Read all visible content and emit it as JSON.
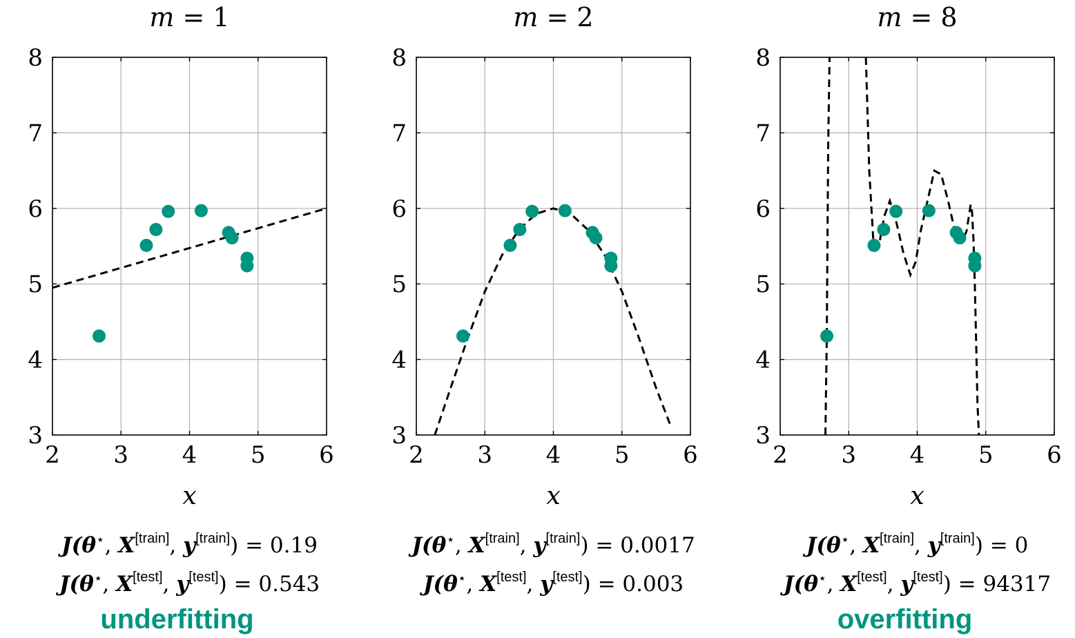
{
  "colors": {
    "points": "#009580",
    "fit_line": "#000000",
    "grid": "#b0b0b0",
    "axes": "#000000",
    "labels": "#009580"
  },
  "panels": [
    {
      "title_var": "m",
      "title_eq": " = 1",
      "xlabel": "x",
      "train_lhs": "J(θ",
      "train_value": ") = 0.19",
      "test_value": ") = 0.543",
      "label": "underfitting"
    },
    {
      "title_var": "m",
      "title_eq": " = 2",
      "xlabel": "x",
      "train_lhs": "J(θ",
      "train_value": ") = 0.0017",
      "test_value": ") = 0.003",
      "label": ""
    },
    {
      "title_var": "m",
      "title_eq": " = 8",
      "xlabel": "x",
      "train_lhs": "J(θ",
      "train_value": ") = 0",
      "test_value": ") = 94317",
      "label": "overfitting"
    }
  ],
  "loss_text": {
    "star": "⋆",
    "X": "X",
    "y": "y",
    "train_sup": "[train]",
    "test_sup": "[test]"
  },
  "chart_data": [
    {
      "type": "scatter",
      "title": "m = 1",
      "xlabel": "x",
      "ylabel": "",
      "xlim": [
        2,
        6
      ],
      "ylim": [
        3,
        8
      ],
      "xticks": [
        2,
        3,
        4,
        5,
        6
      ],
      "yticks": [
        3,
        4,
        5,
        6,
        7,
        8
      ],
      "grid": true,
      "points": {
        "x": [
          2.68,
          3.37,
          3.51,
          3.69,
          4.17,
          4.57,
          4.62,
          4.84,
          4.84
        ],
        "y": [
          4.31,
          5.51,
          5.72,
          5.96,
          5.97,
          5.68,
          5.61,
          5.34,
          5.24
        ]
      },
      "fit": {
        "style": "dashed",
        "x": [
          2.0,
          6.0
        ],
        "y": [
          4.95,
          6.0
        ]
      }
    },
    {
      "type": "scatter",
      "title": "m = 2",
      "xlabel": "x",
      "ylabel": "",
      "xlim": [
        2,
        6
      ],
      "ylim": [
        3,
        8
      ],
      "xticks": [
        2,
        3,
        4,
        5,
        6
      ],
      "yticks": [
        3,
        4,
        5,
        6,
        7,
        8
      ],
      "grid": true,
      "points": {
        "x": [
          2.68,
          3.37,
          3.51,
          3.69,
          4.17,
          4.57,
          4.62,
          4.84,
          4.84
        ],
        "y": [
          4.31,
          5.51,
          5.72,
          5.96,
          5.97,
          5.68,
          5.61,
          5.34,
          5.24
        ]
      },
      "fit": {
        "style": "dashed",
        "x": [
          2.27,
          2.5,
          2.75,
          3.0,
          3.25,
          3.5,
          3.75,
          4.0,
          4.25,
          4.5,
          4.75,
          5.0,
          5.25,
          5.5,
          5.72
        ],
        "y": [
          3.0,
          3.62,
          4.28,
          4.9,
          5.38,
          5.72,
          5.93,
          6.0,
          5.93,
          5.72,
          5.38,
          4.9,
          4.28,
          3.62,
          3.1
        ]
      }
    },
    {
      "type": "scatter",
      "title": "m = 8",
      "xlabel": "x",
      "ylabel": "",
      "xlim": [
        2,
        6
      ],
      "ylim": [
        3,
        8
      ],
      "xticks": [
        2,
        3,
        4,
        5,
        6
      ],
      "yticks": [
        3,
        4,
        5,
        6,
        7,
        8
      ],
      "grid": true,
      "points": {
        "x": [
          2.68,
          3.37,
          3.51,
          3.69,
          4.17,
          4.57,
          4.62,
          4.84,
          4.84
        ],
        "y": [
          4.31,
          5.51,
          5.72,
          5.96,
          5.97,
          5.68,
          5.61,
          5.34,
          5.24
        ]
      },
      "fit_segments": [
        {
          "style": "dashed",
          "x": [
            2.66,
            2.68,
            2.7,
            2.72
          ],
          "y": [
            3.0,
            4.31,
            6.8,
            8.0
          ]
        },
        {
          "style": "dashed",
          "x": [
            3.25,
            3.3,
            3.37,
            3.45,
            3.52,
            3.6,
            3.7,
            3.8,
            3.9,
            3.98,
            4.05,
            4.15,
            4.25,
            4.35,
            4.45,
            4.55,
            4.65,
            4.72,
            4.78,
            4.8,
            4.82,
            4.84,
            4.86,
            4.88,
            4.9
          ],
          "y": [
            8.0,
            6.5,
            5.4,
            5.55,
            5.9,
            6.1,
            5.8,
            5.4,
            5.12,
            5.3,
            5.7,
            6.1,
            6.5,
            6.45,
            6.1,
            5.7,
            5.55,
            5.7,
            6.05,
            5.95,
            5.6,
            5.0,
            4.2,
            3.4,
            3.0
          ]
        }
      ]
    }
  ]
}
